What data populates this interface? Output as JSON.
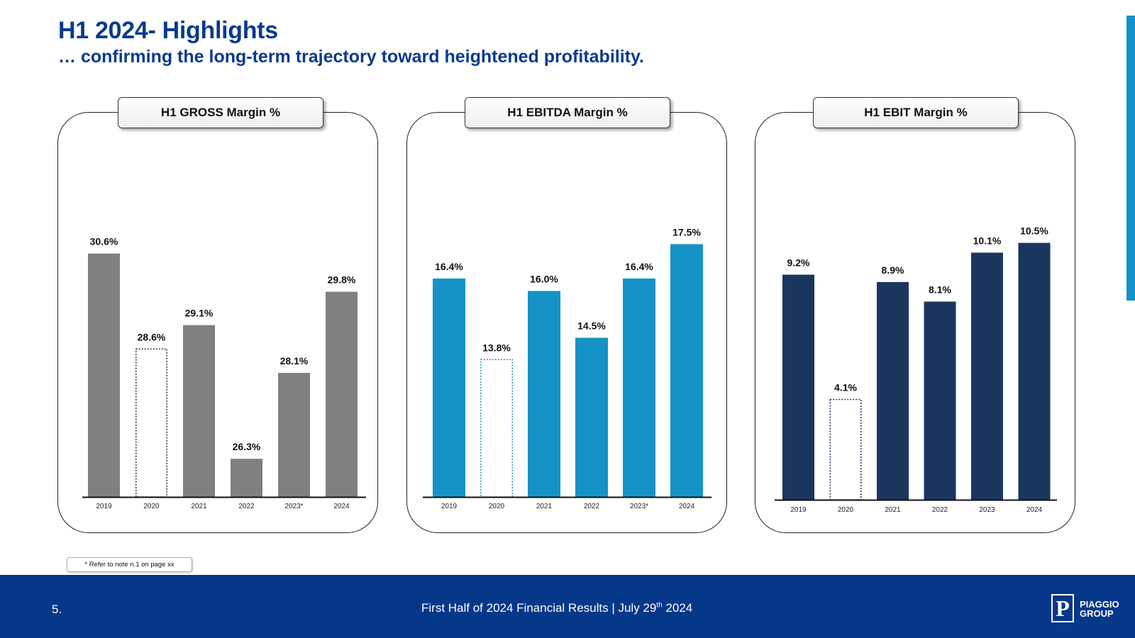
{
  "header": {
    "title": "H1 2024- Highlights",
    "subtitle": "… confirming the long-term trajectory toward heightened profitability."
  },
  "note": "* Refer to note n.1 on page xx",
  "footer": {
    "page_number": "5.",
    "text_main": "First Half of 2024 Financial Results  |  July 29",
    "text_sup": "th",
    "text_year": " 2024",
    "logo_mark": "P",
    "logo_line1": "PIAGGIO",
    "logo_line2": "GROUP"
  },
  "colors": {
    "title": "#0a3a8f",
    "footer_bg": "#063889",
    "gross": "#808080",
    "ebitda": "#1593c6",
    "ebit": "#1a365f",
    "accent": "#1593c6"
  },
  "chart_data": [
    {
      "type": "bar",
      "title": "H1 GROSS Margin %",
      "categories": [
        "2019",
        "2020",
        "2021",
        "2022",
        "2023*",
        "2024"
      ],
      "values": [
        30.6,
        28.6,
        29.1,
        26.3,
        28.1,
        29.8
      ],
      "labels": [
        "30.6%",
        "28.6%",
        "29.1%",
        "26.3%",
        "28.1%",
        "29.8%"
      ],
      "highlight_outline": [
        "2020"
      ],
      "ylim": [
        25.5,
        31.1
      ],
      "color": "#808080"
    },
    {
      "type": "bar",
      "title": "H1 EBITDA Margin %",
      "categories": [
        "2019",
        "2020",
        "2021",
        "2022",
        "2023*",
        "2024"
      ],
      "values": [
        16.4,
        13.8,
        16.0,
        14.5,
        16.4,
        17.5
      ],
      "labels": [
        "16.4%",
        "13.8%",
        "16.0%",
        "14.5%",
        "16.4%",
        "17.5%"
      ],
      "highlight_outline": [
        "2020"
      ],
      "ylim": [
        9.4,
        18.1
      ],
      "color": "#1593c6"
    },
    {
      "type": "bar",
      "title": "H1 EBIT Margin %",
      "categories": [
        "2019",
        "2020",
        "2021",
        "2022",
        "2023",
        "2024"
      ],
      "values": [
        9.2,
        4.1,
        8.9,
        8.1,
        10.1,
        10.5
      ],
      "labels": [
        "9.2%",
        "4.1%",
        "8.9%",
        "8.1%",
        "10.1%",
        "10.5%"
      ],
      "highlight_outline": [
        "2020"
      ],
      "ylim": [
        0,
        11.3
      ],
      "color": "#1a365f"
    }
  ]
}
